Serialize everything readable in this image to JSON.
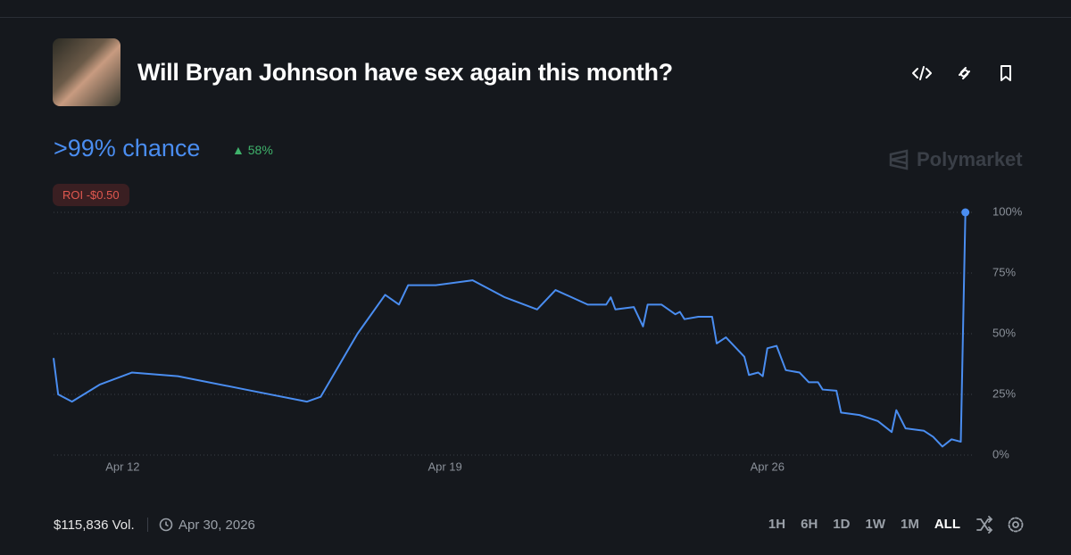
{
  "header": {
    "title": "Will Bryan Johnson have sex again this month?",
    "chance": ">99% chance",
    "change": "58%",
    "roi": "ROI -$0.50",
    "brand": "Polymarket"
  },
  "chart_data": {
    "type": "line",
    "color": "#4a8df0",
    "x": [
      10.5,
      10.6,
      10.9,
      11.5,
      12.2,
      13.2,
      14.8,
      16.0,
      16.3,
      17.1,
      17.7,
      18.0,
      18.2,
      18.8,
      19.6,
      20.3,
      21.0,
      21.4,
      22.1,
      22.5,
      22.6,
      22.7,
      23.1,
      23.3,
      23.4,
      23.7,
      24.0,
      24.1,
      24.2,
      24.5,
      24.8,
      24.9,
      25.1,
      25.5,
      25.6,
      25.8,
      25.9,
      26.0,
      26.2,
      26.4,
      26.7,
      26.9,
      27.1,
      27.2,
      27.5,
      27.6,
      28.0,
      28.4,
      28.7,
      28.8,
      29.0,
      29.4,
      29.6,
      29.8,
      30.0,
      30.2,
      30.3
    ],
    "values": [
      40,
      25,
      22,
      29,
      34,
      32.5,
      26.5,
      22,
      24,
      50,
      66,
      62,
      70,
      70,
      72,
      65,
      60,
      68,
      62,
      62,
      65,
      60,
      61,
      53,
      62,
      62,
      58,
      59,
      56,
      57,
      57,
      46,
      48.5,
      40.5,
      33,
      34,
      32.5,
      44,
      45,
      35,
      34,
      30,
      30,
      27,
      26.5,
      17.5,
      16.5,
      14,
      9.5,
      18.5,
      11,
      10,
      7.5,
      3.5,
      6.5,
      5.5,
      100
    ],
    "xlim": [
      10.5,
      30.5
    ],
    "xticks": [
      {
        "value": 12,
        "label": "Apr 12"
      },
      {
        "value": 19,
        "label": "Apr 19"
      },
      {
        "value": 26,
        "label": "Apr 26"
      }
    ],
    "ylim": [
      0,
      100
    ],
    "yticks": [
      {
        "value": 0,
        "label": "0%"
      },
      {
        "value": 25,
        "label": "25%"
      },
      {
        "value": 50,
        "label": "50%"
      },
      {
        "value": 75,
        "label": "75%"
      },
      {
        "value": 100,
        "label": "100%"
      }
    ],
    "grid": true
  },
  "footer": {
    "volume": "$115,836 Vol.",
    "end_date": "Apr 30, 2026",
    "ranges": [
      "1H",
      "6H",
      "1D",
      "1W",
      "1M",
      "ALL"
    ]
  }
}
